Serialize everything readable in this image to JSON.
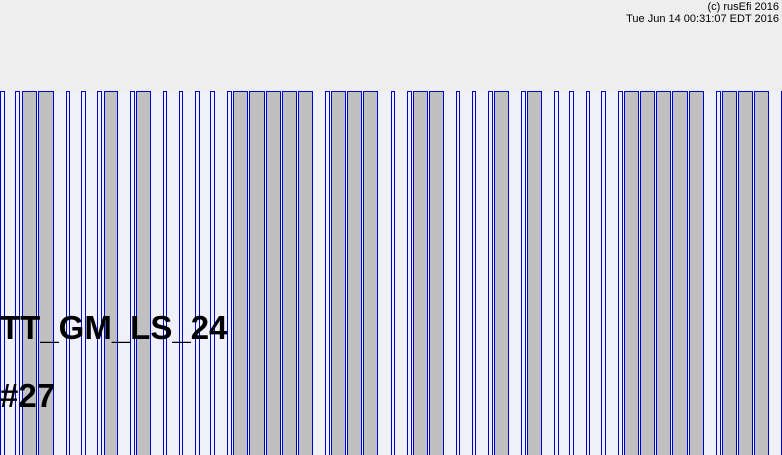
{
  "header": {
    "copyright": "(c) rusEfi 2016",
    "timestamp": "Tue Jun 14 00:31:07 EDT 2016"
  },
  "wheel": {
    "name": "TT_GM_LS_24",
    "id": "#27"
  },
  "colors": {
    "background": "#eeeeee",
    "tooth_outline": "#0000cc",
    "tooth_fill": "#c0c0c0",
    "gap_fill": "#f0f0f8",
    "text": "#000000"
  }
}
